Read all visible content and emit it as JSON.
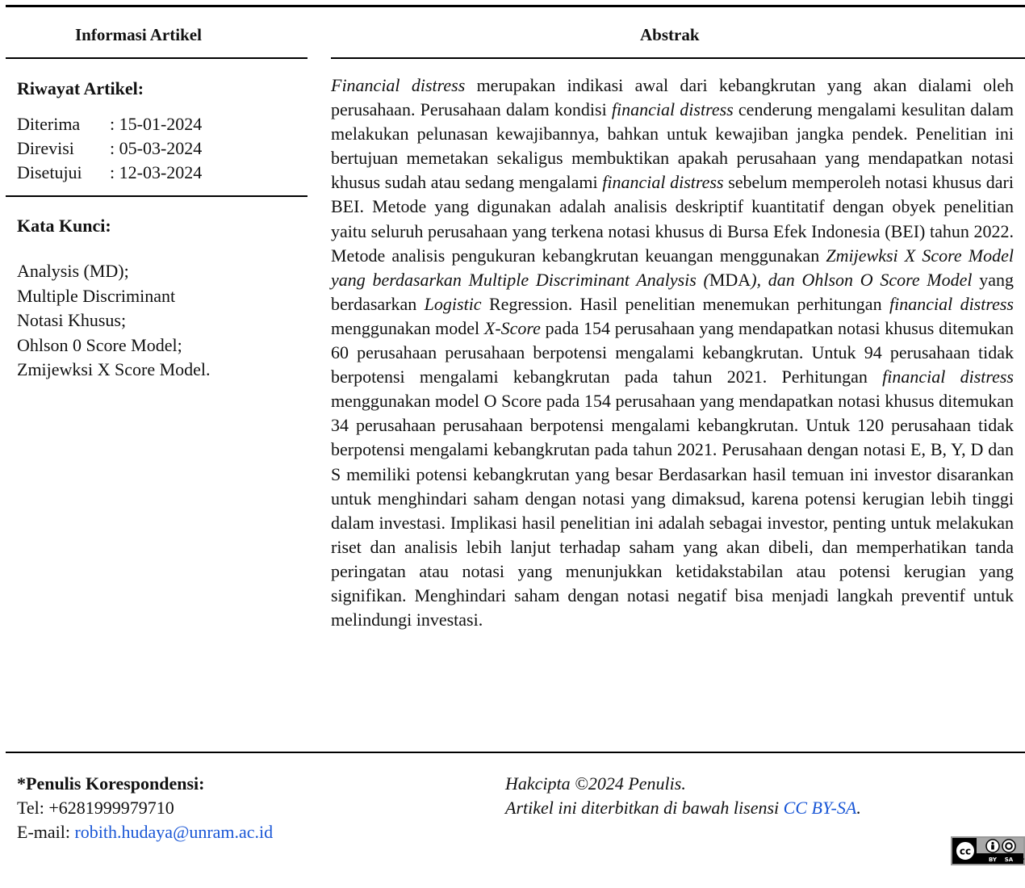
{
  "header": {
    "left_title": "Informasi Artikel",
    "right_title": "Abstrak"
  },
  "history": {
    "heading": "Riwayat Artikel:",
    "rows": [
      {
        "label": "Diterima",
        "value": ": 15-01-2024"
      },
      {
        "label": "Direvisi",
        "value": ": 05-03-2024"
      },
      {
        "label": "Disetujui",
        "value": ": 12-03-2024"
      }
    ]
  },
  "keywords": {
    "heading": "Kata Kunci:",
    "items": [
      "Analysis (MD);",
      "Multiple Discriminant",
      "Notasi Khusus;",
      "Ohlson 0 Score Model;",
      "Zmijewksi X Score Model."
    ]
  },
  "abstract": {
    "segments": [
      {
        "text": "Financial distress",
        "italic": true
      },
      {
        "text": " merupakan indikasi awal dari kebangkrutan yang akan di­alami oleh perusahaan. Perusahaan dalam kondisi ",
        "italic": false
      },
      {
        "text": "financial distress",
        "italic": true
      },
      {
        "text": " cenderung mengalami kesulitan dalam melakukan pelunasan kewajibannya, bahkan untuk kewajiban jangka pendek. Penelitian ini bertujuan memetakan sekaligus mem­buktikan apakah perusahaan yang mendapatkan notasi khusus sudah atau se­dang mengalami ",
        "italic": false
      },
      {
        "text": "financial distress",
        "italic": true
      },
      {
        "text": " sebelum memperoleh notasi khusus dari BEI. Metode yang digunakan adalah analisis deskriptif kuantitatif dengan obyek penelitian yaitu seluruh perusahaan yang terkena notasi khusus di Bursa Efek Indonesia (BEI) tahun 2022. Metode analisis pengukuran kebangkrutan keuangan menggunakan ",
        "italic": false
      },
      {
        "text": "Zmijewksi X Score Model yang berdasarkan Multiple Discriminant Analysis (",
        "italic": true
      },
      {
        "text": "MDA",
        "italic": false
      },
      {
        "text": "), dan Ohlson O Score Model",
        "italic": true
      },
      {
        "text": " yang berdasarkan ",
        "italic": false
      },
      {
        "text": "Logistic",
        "italic": true
      },
      {
        "text": " Regression. Hasil penelitian menemukan perhitungan ",
        "italic": false
      },
      {
        "text": "financial dis­tress",
        "italic": true
      },
      {
        "text": " menggunakan model ",
        "italic": false
      },
      {
        "text": "X-Score",
        "italic": true
      },
      {
        "text": " pada 154 perusahaan yang mendapatkan notasi khusus ditemukan 60 perusahaan perusahaan berpotensi mengalami ke­bangkrutan. Untuk 94 perusahaan tidak berpotensi mengalami kebangkrutan pada tahun 2021. Perhitungan ",
        "italic": false
      },
      {
        "text": "financial distress",
        "italic": true
      },
      {
        "text": " menggunakan model O Score pada 154 perusahaan yang mendapatkan notasi khusus ditemukan 34 perus­ahaan perusahaan berpotensi mengalami kebangkrutan. Untuk 120 perusahaan tidak berpotensi mengalami kebangkrutan pada tahun 2021. Perusahaan dengan notasi E, B, Y, D dan S memiliki potensi kebangkrutan yang besar Berdasarkan hasil temuan ini investor disarankan untuk menghindari saham dengan notasi yang dimaksud, karena potensi kerugian lebih tinggi dalam in­vestasi. Implikasi hasil penelitian ini adalah sebagai investor, penting untuk melakukan riset dan analisis lebih lanjut terhadap saham yang akan dibeli, dan memperhatikan tanda peringatan atau notasi yang menunjukkan ketidakstabi­lan atau potensi kerugian yang signifikan. Menghindari saham dengan notasi negatif bisa menjadi langkah preventif untuk melindungi investasi.",
        "italic": false
      }
    ]
  },
  "correspondence": {
    "heading": "*Penulis Korespondensi:",
    "tel": "Tel: +6281999979710",
    "email_label": "E-mail: ",
    "email": "robith.hudaya@unram.ac.id"
  },
  "copyright": {
    "line1": "Hakcipta ©2024 Penulis.",
    "line2_prefix": "Artikel ini diterbitkan di bawah lisensi ",
    "license": "CC BY-SA",
    "line2_suffix": "."
  },
  "badge": {
    "cc_text": "cc",
    "labels": [
      "BY",
      "SA"
    ]
  },
  "colors": {
    "link": "#1a57d6"
  }
}
